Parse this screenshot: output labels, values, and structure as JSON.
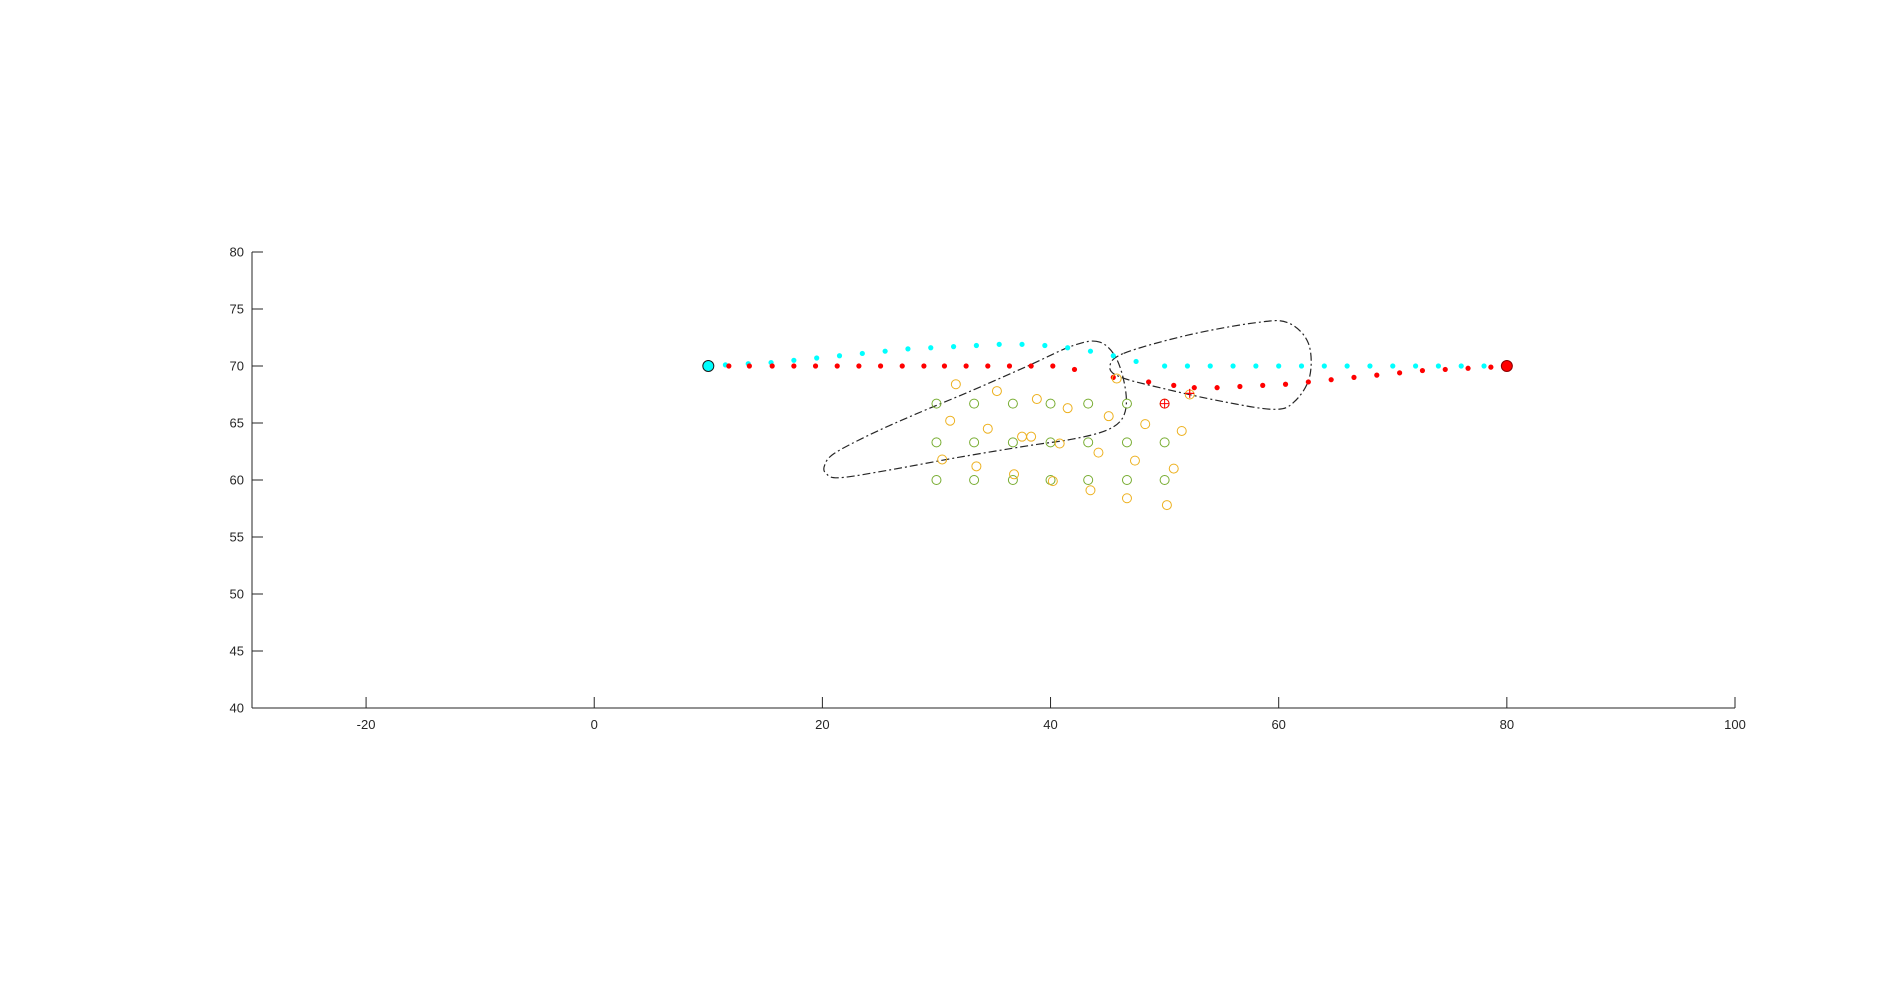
{
  "chart_data": {
    "type": "scatter",
    "title": "",
    "xlabel": "",
    "ylabel": "",
    "xlim": [
      -30,
      100
    ],
    "ylim": [
      40,
      80
    ],
    "xticks": [
      -20,
      0,
      20,
      40,
      60,
      80,
      100
    ],
    "yticks": [
      40,
      45,
      50,
      55,
      60,
      65,
      70,
      75,
      80
    ],
    "xtick_labels": [
      "-20",
      "0",
      "20",
      "40",
      "60",
      "80",
      "100"
    ],
    "ytick_labels": [
      "40",
      "45",
      "50",
      "55",
      "60",
      "65",
      "70",
      "75",
      "80"
    ],
    "grid": false,
    "legend": "none",
    "colors": {
      "cyan": "#00ffff",
      "red": "#ff0000",
      "green": "#77ac30",
      "orange": "#edb120",
      "outline": "#262626"
    },
    "start_point": {
      "x": 10,
      "y": 70,
      "color": "#00ffff"
    },
    "end_point": {
      "x": 80,
      "y": 70,
      "color": "#ff0000"
    },
    "series": [
      {
        "marker": "dot",
        "color": "#00ffff",
        "x": [
          11.5,
          13.5,
          15.5,
          17.5,
          19.5,
          21.5,
          23.5,
          25.5,
          27.5,
          29.5,
          31.5,
          33.5,
          35.5,
          37.5,
          39.5,
          41.5,
          43.5,
          45.5,
          47.5,
          50,
          52,
          54,
          56,
          58,
          60,
          62,
          64,
          66,
          68,
          70,
          72,
          74,
          76,
          78
        ],
        "y": [
          70.1,
          70.2,
          70.3,
          70.5,
          70.7,
          70.9,
          71.1,
          71.3,
          71.5,
          71.6,
          71.7,
          71.8,
          71.9,
          71.9,
          71.8,
          71.6,
          71.3,
          70.9,
          70.4,
          70,
          70,
          70,
          70,
          70,
          70,
          70,
          70,
          70,
          70,
          70,
          70,
          70,
          70,
          70
        ]
      },
      {
        "marker": "dot",
        "color": "#ff0000",
        "x": [
          11.8,
          13.6,
          15.6,
          17.5,
          19.4,
          21.3,
          23.2,
          25.1,
          27,
          28.9,
          30.7,
          32.6,
          34.5,
          36.4,
          38.3,
          40.2,
          42.1,
          45.5,
          48.6,
          50.8,
          52.6,
          54.6,
          56.6,
          58.6,
          60.6,
          62.6,
          64.6,
          66.6,
          68.6,
          70.6,
          72.6,
          74.6,
          76.6,
          78.6
        ],
        "y": [
          70,
          70,
          70,
          70,
          70,
          70,
          70,
          70,
          70,
          70,
          70,
          70,
          70,
          70,
          70,
          70,
          69.7,
          69,
          68.6,
          68.3,
          68.1,
          68.1,
          68.2,
          68.3,
          68.4,
          68.6,
          68.8,
          69.0,
          69.2,
          69.4,
          69.6,
          69.7,
          69.8,
          69.9
        ]
      },
      {
        "marker": "open-circle",
        "color": "#77ac30",
        "x": [
          30,
          33.3,
          36.7,
          40,
          43.3,
          46.7,
          50,
          30,
          33.3,
          36.7,
          40,
          43.3,
          46.7,
          50,
          30,
          33.3,
          36.7,
          40,
          43.3,
          46.7,
          50
        ],
        "y": [
          66.7,
          66.7,
          66.7,
          66.7,
          66.7,
          66.7,
          66.7,
          63.3,
          63.3,
          63.3,
          63.3,
          63.3,
          63.3,
          63.3,
          60,
          60,
          60,
          60,
          60,
          60,
          60
        ]
      },
      {
        "marker": "open-circle",
        "color": "#edb120",
        "x": [
          31.7,
          35.3,
          38.8,
          45.8,
          52.2,
          31.2,
          34.5,
          38.3,
          41.5,
          45.1,
          48.3,
          51.5,
          37.5,
          40.8,
          44.2,
          47.4,
          30.5,
          33.5,
          36.8,
          50.8,
          40.2,
          43.5,
          46.7,
          50.2
        ],
        "y": [
          68.4,
          67.8,
          67.1,
          68.9,
          67.5,
          65.2,
          64.5,
          63.8,
          66.3,
          65.6,
          64.9,
          64.3,
          63.8,
          63.2,
          62.4,
          61.7,
          61.8,
          61.2,
          60.5,
          61.0,
          59.9,
          59.1,
          58.4,
          57.8
        ]
      },
      {
        "marker": "circle-plus",
        "color": "#ff0000",
        "x": [
          50
        ],
        "y": [
          66.7
        ]
      },
      {
        "marker": "plus",
        "color": "#ff0000",
        "x": [
          52.2
        ],
        "y": [
          67.6
        ]
      }
    ],
    "outlines": [
      {
        "style": "dash-dot",
        "color": "#262626",
        "x": [
          44.3,
          42,
          38,
          33,
          28,
          24,
          21,
          20.2,
          20.3,
          21.5,
          26,
          32,
          38,
          42,
          45,
          46.4,
          46.6,
          45.8,
          44.3
        ],
        "y": [
          72.1,
          71.8,
          70,
          67.8,
          65.7,
          63.9,
          62.3,
          61.3,
          60.6,
          60.2,
          60.9,
          62,
          63,
          63.6,
          64.4,
          65.6,
          67.7,
          70.6,
          72.1
        ]
      },
      {
        "style": "dash-dot",
        "color": "#262626",
        "x": [
          46.4,
          52,
          58,
          60.8,
          62.6,
          62.7,
          61.3,
          59.5,
          55,
          50,
          46.2,
          45.2,
          46.4
        ],
        "y": [
          71.1,
          72.7,
          73.8,
          73.8,
          72.0,
          69.0,
          66.8,
          66.2,
          66.9,
          68.0,
          69.0,
          69.9,
          71.1
        ]
      }
    ]
  }
}
